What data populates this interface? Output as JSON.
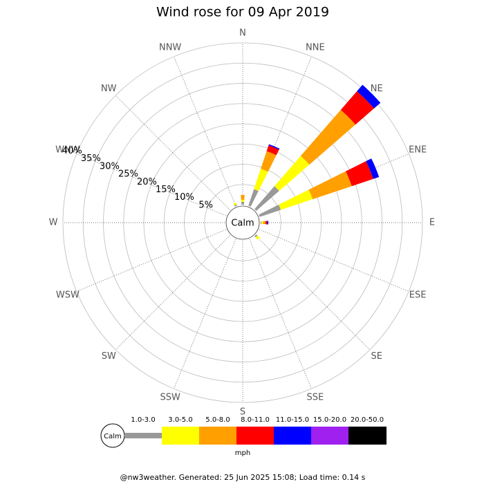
{
  "chart_data": {
    "type": "windrose",
    "title": "Wind rose for 09 Apr 2019",
    "directions": [
      "N",
      "NNE",
      "NE",
      "ENE",
      "E",
      "ESE",
      "SE",
      "SSE",
      "S",
      "SSW",
      "SW",
      "WSW",
      "W",
      "WNW",
      "NW",
      "NNW"
    ],
    "calm_label": "Calm",
    "rlim": [
      0,
      40
    ],
    "rticks": [
      {
        "value": 5,
        "label": "5%"
      },
      {
        "value": 10,
        "label": "10%"
      },
      {
        "value": 15,
        "label": "15%"
      },
      {
        "value": 20,
        "label": "20%"
      },
      {
        "value": 25,
        "label": "25%"
      },
      {
        "value": 30,
        "label": "30%"
      },
      {
        "value": 35,
        "label": "35%"
      },
      {
        "value": 40,
        "label": "40%"
      }
    ],
    "series": [
      {
        "name": "1.0-3.0",
        "color": "#999999",
        "values": [
          0.7,
          4.3,
          7.5,
          5.5,
          0.2,
          0,
          0.4,
          0,
          0,
          0,
          0,
          0,
          0,
          0,
          0,
          0.3
        ]
      },
      {
        "name": "3.0-5.0",
        "color": "#ffff00",
        "values": [
          0.5,
          5.3,
          9.9,
          8.3,
          0.4,
          0,
          0.8,
          0,
          0,
          0,
          0,
          0,
          0,
          0,
          0,
          0.5
        ]
      },
      {
        "name": "5.0-8.0",
        "color": "#ffa000",
        "values": [
          1.2,
          4.6,
          15.1,
          10.2,
          0.6,
          0,
          0,
          0,
          0,
          0,
          0,
          0,
          0,
          0,
          0,
          0
        ]
      },
      {
        "name": "8.0-11.0",
        "color": "#ff0000",
        "values": [
          0,
          1.5,
          6.1,
          5.6,
          0.4,
          0,
          0,
          0,
          0,
          0,
          0,
          0,
          0,
          0,
          0,
          0
        ]
      },
      {
        "name": "11.0-15.0",
        "color": "#0000ff",
        "values": [
          0,
          0.3,
          2.1,
          1.5,
          0.3,
          0,
          0,
          0,
          0,
          0,
          0,
          0,
          0,
          0,
          0,
          0
        ]
      },
      {
        "name": "15.0-20.0",
        "color": "#a020f0",
        "values": [
          0,
          0,
          0,
          0,
          0,
          0,
          0,
          0,
          0,
          0,
          0,
          0,
          0,
          0,
          0,
          0
        ]
      },
      {
        "name": "20.0-50.0",
        "color": "#000000",
        "values": [
          0,
          0,
          0,
          0,
          0,
          0,
          0,
          0,
          0,
          0,
          0,
          0,
          0,
          0,
          0,
          0
        ]
      }
    ],
    "units": "mph",
    "footer": "@nw3weather. Generated: 25 Jun 2025 15:08; Load time: 0.14 s"
  }
}
